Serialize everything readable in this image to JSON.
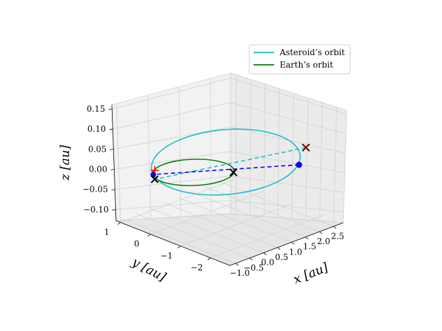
{
  "chart_data": {
    "type": "line",
    "projection": "3d",
    "title": "",
    "xlabel": "x [au]",
    "ylabel": "y [au]",
    "zlabel": "z [au]",
    "x_ticks": [
      "−1.0",
      "−0.5",
      "0.0",
      "0.5",
      "1.0",
      "1.5",
      "2.0",
      "2.5"
    ],
    "y_ticks": [
      "1",
      "0",
      "−1",
      "−2"
    ],
    "z_ticks": [
      "0.15",
      "0.10",
      "0.05",
      "0.00",
      "−0.05",
      "−0.10"
    ],
    "xlim": [
      -1.2,
      2.6
    ],
    "ylim": [
      -2.8,
      1.5
    ],
    "zlim": [
      -0.11,
      0.17
    ],
    "grid": true,
    "legend_position": "top-right",
    "series": [
      {
        "name": "Asteroid’s orbit",
        "color": "#17becf",
        "style": "solid",
        "shape": "ellipse",
        "a": 1.7,
        "e": 0.39,
        "inclination_deg": 2.2
      },
      {
        "name": "Earth’s orbit",
        "color": "#008000",
        "style": "solid",
        "shape": "circle",
        "radius": 1.0
      }
    ],
    "markers": [
      {
        "type": "cross",
        "color": "#000000",
        "x": 2.35,
        "y": -0.6,
        "z": 0.0
      },
      {
        "type": "cross",
        "color": "#000000",
        "x": -0.6,
        "y": 0.8,
        "z": 0.0
      },
      {
        "type": "cross",
        "color": "#000000",
        "x": 0.99,
        "y": -0.1,
        "z": 0.0
      },
      {
        "type": "plus",
        "color": "#ff0000",
        "x": -0.95,
        "y": 0.3,
        "z": 0.0
      }
    ],
    "dashed_lines": [
      {
        "color": "#17becf"
      },
      {
        "color": "#0000ff"
      }
    ],
    "points": [
      {
        "color": "#0000ff",
        "x": 2.2,
        "y": -0.8,
        "z": 0.0
      },
      {
        "color": "#0000ff",
        "x": -0.95,
        "y": 0.3,
        "z": 0.0
      }
    ]
  }
}
